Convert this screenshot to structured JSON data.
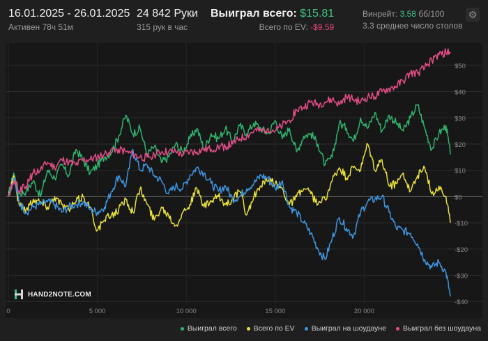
{
  "header": {
    "date_range": "16.01.2025 - 26.01.2025",
    "active_time": "Активен 78ч 51м",
    "hands_count": "24 842 Руки",
    "hands_per_hour": "315 рук в час",
    "won_total_label": "Выиграл всего:",
    "won_total_value": "$15.81",
    "ev_total_label": "Всего по EV:",
    "ev_total_value": "-$9.59",
    "winrate_label": "Винрейт:",
    "winrate_value": "3.58",
    "winrate_unit": "бб/100",
    "avg_tables": "3.3 среднее число столов",
    "settings_icon": "gear-icon"
  },
  "logo": {
    "text": "HAND2NOTE.COM",
    "icon": "hand2note-logo-icon"
  },
  "chart_data": {
    "type": "line",
    "xlim": [
      0,
      24842
    ],
    "ylim": [
      -40,
      55
    ],
    "x_ticks": [
      0,
      5000,
      10000,
      15000,
      20000
    ],
    "x_tick_labels": [
      "0",
      "5 000",
      "10 000",
      "15 000",
      "20 000"
    ],
    "y_ticks": [
      50,
      40,
      30,
      20,
      10,
      0,
      -10,
      -20,
      -30,
      -40
    ],
    "y_tick_labels": [
      "$50",
      "$40",
      "$30",
      "$20",
      "$10",
      "$0",
      "-$10",
      "-$20",
      "-$30",
      "-$40"
    ],
    "y_axis_side": "right",
    "grid": "horizontal",
    "legend_position": "bottom-right",
    "series": [
      {
        "name": "Выиграл всего",
        "color": "#2fb36f",
        "x": [
          0,
          300,
          600,
          1000,
          1400,
          1800,
          2200,
          2600,
          3000,
          3400,
          3800,
          4200,
          4600,
          5000,
          5400,
          5800,
          6200,
          6600,
          7000,
          7400,
          7800,
          8200,
          8600,
          9000,
          9400,
          9800,
          10200,
          10600,
          11000,
          11400,
          11800,
          12200,
          12600,
          13000,
          13400,
          13800,
          14200,
          14600,
          15000,
          15400,
          15800,
          16200,
          16600,
          17000,
          17400,
          17800,
          18200,
          18600,
          19000,
          19400,
          19800,
          20200,
          20600,
          21000,
          21400,
          21800,
          22200,
          22600,
          23000,
          23400,
          23800,
          24200,
          24600,
          24842
        ],
        "y": [
          0,
          9,
          1,
          2,
          6,
          0,
          10,
          7,
          12,
          8,
          18,
          14,
          9,
          12,
          15,
          17,
          23,
          31,
          24,
          26,
          16,
          19,
          13,
          15,
          20,
          17,
          22,
          26,
          18,
          24,
          22,
          26,
          21,
          27,
          24,
          28,
          26,
          24,
          29,
          22,
          26,
          17,
          23,
          24,
          20,
          12,
          15,
          28,
          26,
          21,
          30,
          26,
          32,
          25,
          31,
          28,
          25,
          30,
          35,
          26,
          18,
          24,
          27,
          16
        ]
      },
      {
        "name": "Всего по EV",
        "color": "#e9e23a",
        "x": [
          0,
          300,
          600,
          1000,
          1400,
          1800,
          2200,
          2600,
          3000,
          3400,
          3800,
          4200,
          4600,
          5000,
          5400,
          5800,
          6200,
          6600,
          7000,
          7400,
          7800,
          8200,
          8600,
          9000,
          9400,
          9800,
          10200,
          10600,
          11000,
          11400,
          11800,
          12200,
          12600,
          13000,
          13400,
          13800,
          14200,
          14600,
          15000,
          15400,
          15800,
          16200,
          16600,
          17000,
          17400,
          17800,
          18200,
          18600,
          19000,
          19400,
          19800,
          20200,
          20600,
          21000,
          21400,
          21800,
          22200,
          22600,
          23000,
          23400,
          23800,
          24200,
          24600,
          24842
        ],
        "y": [
          0,
          8,
          -3,
          -5,
          -1,
          -2,
          -4,
          0,
          -3,
          -5,
          -2,
          0,
          -4,
          -13,
          -9,
          -7,
          -5,
          -1,
          -6,
          3,
          -3,
          -9,
          -4,
          -7,
          -11,
          -6,
          -3,
          3,
          -4,
          -2,
          0,
          -3,
          -1,
          2,
          -7,
          0,
          4,
          6,
          5,
          3,
          -3,
          0,
          3,
          1,
          -3,
          -1,
          6,
          11,
          7,
          11,
          10,
          20,
          10,
          14,
          4,
          5,
          9,
          2,
          8,
          11,
          1,
          4,
          0,
          -10
        ]
      },
      {
        "name": "Выиграл на шоудауне",
        "color": "#3f95e0",
        "x": [
          0,
          300,
          600,
          1000,
          1400,
          1800,
          2200,
          2600,
          3000,
          3400,
          3800,
          4200,
          4600,
          5000,
          5400,
          5800,
          6200,
          6600,
          7000,
          7400,
          7800,
          8200,
          8600,
          9000,
          9400,
          9800,
          10200,
          10600,
          11000,
          11400,
          11800,
          12200,
          12600,
          13000,
          13400,
          13800,
          14200,
          14600,
          15000,
          15400,
          15800,
          16200,
          16600,
          17000,
          17400,
          17800,
          18200,
          18600,
          19000,
          19400,
          19800,
          20200,
          20600,
          21000,
          21400,
          21800,
          22200,
          22600,
          23000,
          23400,
          23800,
          24200,
          24600,
          24842
        ],
        "y": [
          0,
          7,
          -2,
          -6,
          -4,
          -3,
          -2,
          -3,
          -6,
          -4,
          -3,
          -2,
          -5,
          -6,
          -4,
          2,
          8,
          4,
          18,
          10,
          12,
          8,
          6,
          1,
          4,
          3,
          8,
          11,
          9,
          5,
          2,
          4,
          -1,
          0,
          3,
          5,
          8,
          7,
          3,
          6,
          -4,
          -6,
          -10,
          -14,
          -20,
          -24,
          -16,
          -8,
          -12,
          -15,
          -6,
          -2,
          -1,
          0,
          -6,
          -12,
          -13,
          -14,
          -18,
          -24,
          -27,
          -25,
          -29,
          -38
        ]
      },
      {
        "name": "Выиграл без шоудауна",
        "color": "#e24d86",
        "x": [
          0,
          300,
          600,
          1000,
          1400,
          1800,
          2200,
          2600,
          3000,
          3400,
          3800,
          4200,
          4600,
          5000,
          5400,
          5800,
          6200,
          6600,
          7000,
          7400,
          7800,
          8200,
          8600,
          9000,
          9400,
          9800,
          10200,
          10600,
          11000,
          11400,
          11800,
          12200,
          12600,
          13000,
          13400,
          13800,
          14200,
          14600,
          15000,
          15400,
          15800,
          16200,
          16600,
          17000,
          17400,
          17800,
          18200,
          18600,
          19000,
          19400,
          19800,
          20200,
          20600,
          21000,
          21400,
          21800,
          22200,
          22600,
          23000,
          23400,
          23800,
          24200,
          24600,
          24842
        ],
        "y": [
          0,
          6,
          2,
          4,
          9,
          10,
          13,
          11,
          14,
          13,
          12,
          14,
          14,
          15,
          16,
          18,
          18,
          17,
          16,
          15,
          15,
          16,
          17,
          17,
          17,
          16,
          17,
          17,
          18,
          18,
          19,
          19,
          20,
          22,
          23,
          25,
          25,
          26,
          25,
          27,
          29,
          33,
          34,
          36,
          35,
          36,
          37,
          35,
          38,
          37,
          36,
          38,
          38,
          40,
          41,
          42,
          44,
          47,
          47,
          49,
          52,
          54,
          55,
          55
        ]
      }
    ]
  }
}
